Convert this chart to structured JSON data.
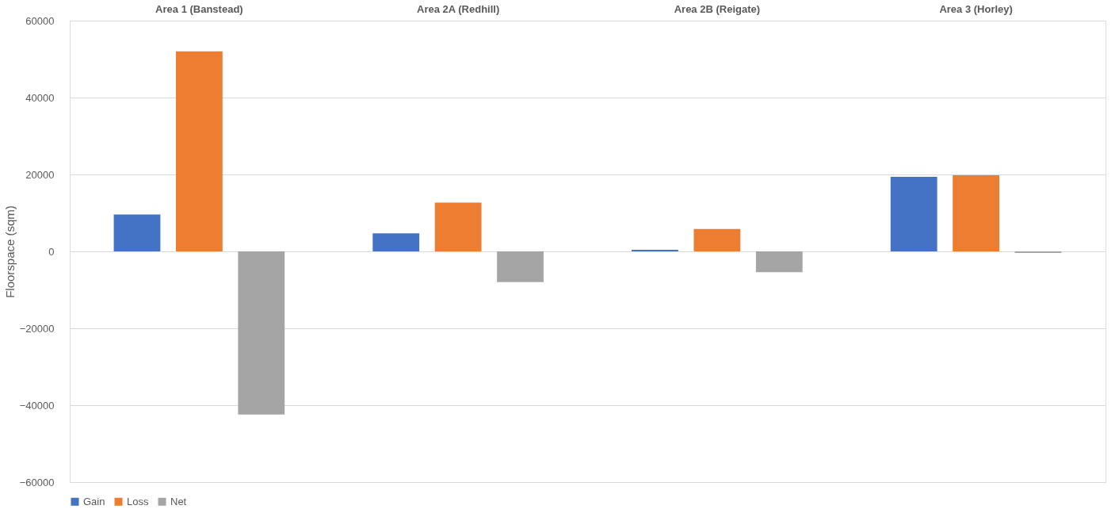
{
  "chart_data": {
    "type": "bar",
    "ylabel": "Floorspace (sqm)",
    "categories": [
      "Area 1 (Banstead)",
      "Area 2A (Redhill)",
      "Area 2B (Reigate)",
      "Area 3 (Horley)"
    ],
    "series": [
      {
        "name": "Gain",
        "color": "#4472c4",
        "values": [
          9600,
          4700,
          400,
          19400
        ]
      },
      {
        "name": "Loss",
        "color": "#ed7d31",
        "values": [
          52000,
          12700,
          5800,
          19800
        ]
      },
      {
        "name": "Net",
        "color": "#a5a5a5",
        "values": [
          -42400,
          -8000,
          -5400,
          -400
        ]
      }
    ],
    "ylim": [
      -60000,
      60000
    ],
    "yticks": [
      -60000,
      -40000,
      -20000,
      0,
      20000,
      40000,
      60000
    ],
    "grid": "y",
    "legend": "bottom"
  }
}
